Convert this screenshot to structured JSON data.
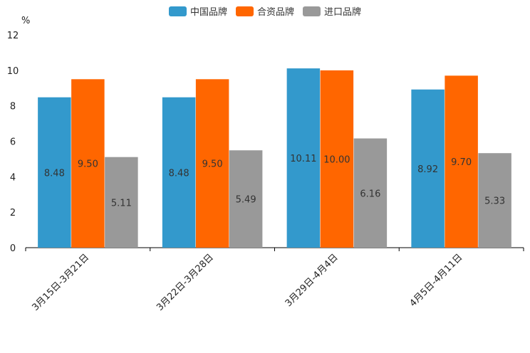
{
  "chart_data": {
    "type": "bar",
    "ylabel": "%",
    "ylim": [
      0,
      12
    ],
    "yticks": [
      0,
      2,
      4,
      6,
      8,
      10,
      12
    ],
    "categories": [
      "3月15日-3月21日",
      "3月22日-3月28日",
      "3月29日-4月4日",
      "4月5日-4月11日"
    ],
    "series": [
      {
        "name": "中国品牌",
        "color": "#3399cc",
        "values": [
          8.48,
          8.48,
          10.11,
          8.92
        ],
        "labels": [
          "8.48",
          "8.48",
          "10.11",
          "8.92"
        ]
      },
      {
        "name": "合资品牌",
        "color": "#ff6600",
        "values": [
          9.5,
          9.5,
          10.0,
          9.7
        ],
        "labels": [
          "9.50",
          "9.50",
          "10.00",
          "9.70"
        ]
      },
      {
        "name": "进口品牌",
        "color": "#999999",
        "values": [
          5.11,
          5.49,
          6.16,
          5.33
        ],
        "labels": [
          "5.11",
          "5.49",
          "6.16",
          "5.33"
        ]
      }
    ],
    "legend_position": "top-center"
  }
}
